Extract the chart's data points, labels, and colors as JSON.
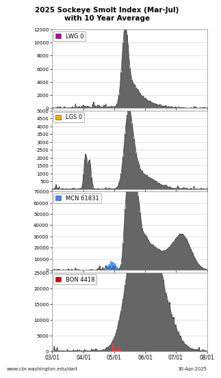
{
  "title": "2025 Sockeye Smolt Index (Mar-Jul)\nwith 10 Year Average",
  "footer_left": "www.cbr.washington.edu/dart",
  "footer_right": "30-Apr-2025",
  "subplots": [
    {
      "label": "LWG 0",
      "legend_color": "#aa00aa",
      "ylim": [
        0,
        12000
      ],
      "yticks": [
        0,
        2000,
        4000,
        6000,
        8000,
        10000,
        12000
      ],
      "highlight_color": null
    },
    {
      "label": "LGS 0",
      "legend_color": "#ffaa00",
      "ylim": [
        0,
        5000
      ],
      "yticks": [
        500,
        1000,
        1500,
        2000,
        2500,
        3000,
        3500,
        4000,
        4500,
        5000
      ],
      "highlight_color": null
    },
    {
      "label": "MCN 61831",
      "legend_color": "#4488ff",
      "ylim": [
        0,
        70000
      ],
      "yticks": [
        0,
        10000,
        20000,
        30000,
        40000,
        50000,
        60000,
        70000
      ],
      "highlight_color": "#5599ff"
    },
    {
      "label": "BON 4418",
      "legend_color": "#cc0000",
      "ylim": [
        0,
        25000
      ],
      "yticks": [
        0,
        5000,
        10000,
        15000,
        20000,
        25000
      ],
      "highlight_color": "#dd4444"
    }
  ],
  "xtick_labels": [
    "03/01",
    "04/01",
    "05/01",
    "06/01",
    "07/01",
    "08/01"
  ],
  "bg_color": "#ffffff",
  "grid_color": "#cccccc"
}
